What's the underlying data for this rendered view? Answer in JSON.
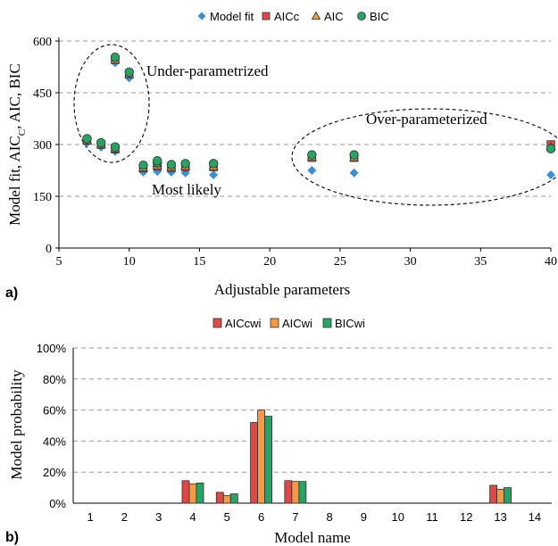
{
  "chart_data": [
    {
      "panel_label": "a)",
      "type": "scatter",
      "xlabel": "Adjustable parameters",
      "ylabel": "Model fit, AIC",
      "ylabel_sub": "C",
      "ylabel_rest": ", AIC, BIC",
      "xlim": [
        5,
        40
      ],
      "ylim": [
        0,
        600
      ],
      "xticks": [
        5,
        10,
        15,
        20,
        25,
        30,
        35,
        40
      ],
      "yticks": [
        0,
        150,
        300,
        450,
        600
      ],
      "grid": "horizontal dashed",
      "legend_position": "top-center",
      "x": [
        7,
        8,
        9,
        9,
        10,
        11,
        12,
        12,
        13,
        14,
        16,
        23,
        26,
        40
      ],
      "series": [
        {
          "name": "Model fit",
          "marker": "diamond",
          "color": "#3a8fd0",
          "values": [
            305,
            293,
            280,
            537,
            493,
            220,
            222,
            230,
            220,
            218,
            212,
            225,
            218,
            212
          ]
        },
        {
          "name": "AICc",
          "marker": "square",
          "color": "#e04848",
          "values": [
            312,
            300,
            287,
            546,
            505,
            232,
            237,
            245,
            233,
            235,
            235,
            262,
            262,
            300
          ]
        },
        {
          "name": "AIC",
          "marker": "triangle",
          "color": "#f59a42",
          "values": [
            312,
            300,
            288,
            546,
            505,
            233,
            240,
            247,
            235,
            238,
            237,
            264,
            263,
            293
          ]
        },
        {
          "name": "BIC",
          "marker": "circle",
          "color": "#27a363",
          "values": [
            317,
            305,
            293,
            553,
            510,
            240,
            247,
            253,
            242,
            245,
            245,
            270,
            270,
            288
          ]
        }
      ],
      "annotations": [
        {
          "text": "Under-parametrized"
        },
        {
          "text": "Over-parameterized"
        },
        {
          "text": "Most likely"
        }
      ]
    },
    {
      "panel_label": "b)",
      "type": "bar",
      "xlabel": "Model name",
      "ylabel": "Model probability",
      "ylim": [
        0,
        100
      ],
      "yticks": [
        "0%",
        "20%",
        "40%",
        "60%",
        "80%",
        "100%"
      ],
      "grid": "horizontal dashed",
      "legend_position": "top-center",
      "categories": [
        "1",
        "2",
        "3",
        "4",
        "5",
        "6",
        "7",
        "8",
        "9",
        "10",
        "11",
        "12",
        "13",
        "14"
      ],
      "series": [
        {
          "name": "AICcwi",
          "color": "#e04848",
          "values": [
            0,
            0,
            0,
            14.5,
            7,
            52,
            14.5,
            0,
            0,
            0,
            0,
            0,
            11.5,
            0
          ]
        },
        {
          "name": "AICwi",
          "color": "#f59a42",
          "values": [
            0,
            0,
            0,
            12.5,
            5,
            60,
            14,
            0,
            0,
            0,
            0,
            0,
            9,
            0
          ]
        },
        {
          "name": "BICwi",
          "color": "#27a363",
          "values": [
            0,
            0,
            0,
            13,
            6,
            56,
            14,
            0,
            0,
            0,
            0,
            0,
            10,
            0
          ]
        }
      ]
    }
  ]
}
